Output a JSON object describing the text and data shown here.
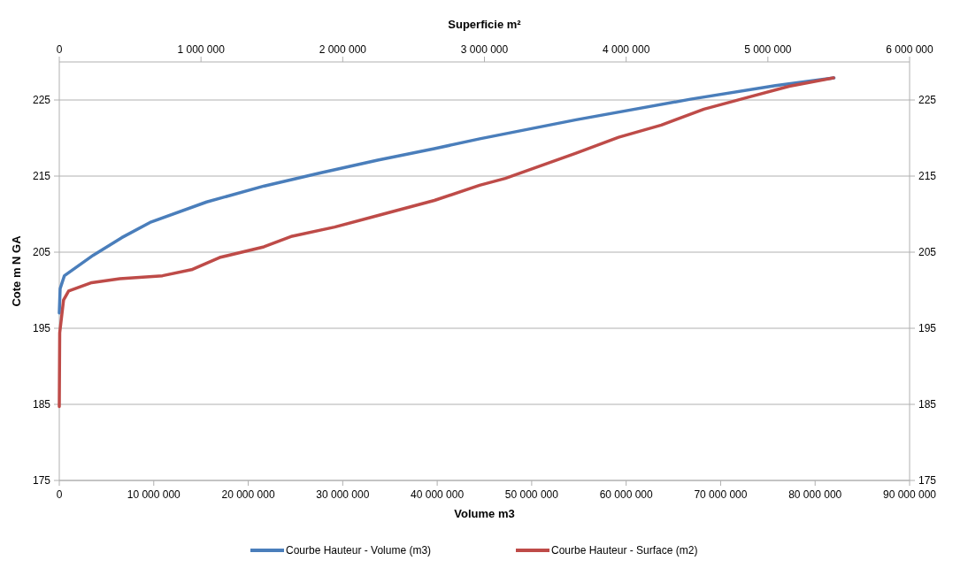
{
  "chart_data": {
    "type": "line",
    "xlabel": "Volume m3",
    "x2label": "Superficie m²",
    "ylabel": "Cote m N GA",
    "xlim": [
      0,
      90000000
    ],
    "xticks": [
      0,
      {
        "value": 10000000,
        "label": "10 000 000"
      },
      {
        "value": 20000000,
        "label": "20 000 000"
      },
      {
        "value": 30000000,
        "label": "30 000 000"
      },
      {
        "value": 40000000,
        "label": "40 000 000"
      },
      {
        "value": 50000000,
        "label": "50 000 000"
      },
      {
        "value": 60000000,
        "label": "60 000 000"
      },
      {
        "value": 70000000,
        "label": "70 000 000"
      },
      {
        "value": 80000000,
        "label": "80 000 000"
      },
      {
        "value": 90000000,
        "label": "90 000 000"
      }
    ],
    "x2lim": [
      0,
      6000000
    ],
    "x2ticks": [
      0,
      {
        "value": 1000000,
        "label": "1 000 000"
      },
      {
        "value": 2000000,
        "label": "2 000 000"
      },
      {
        "value": 3000000,
        "label": "3 000 000"
      },
      {
        "value": 4000000,
        "label": "4 000 000"
      },
      {
        "value": 5000000,
        "label": "5 000 000"
      },
      {
        "value": 6000000,
        "label": "6 000 000"
      }
    ],
    "ylim": [
      175,
      230
    ],
    "yticks": [
      175,
      185,
      195,
      205,
      215,
      225
    ],
    "y2lim": [
      175,
      230
    ],
    "y2ticks": [
      175,
      185,
      195,
      205,
      215,
      225
    ],
    "grid": "y",
    "legend": "bottom",
    "line_style": "solid",
    "series": [
      {
        "name": "Courbe Hauteur - Volume (m3)",
        "color": "#4a7ebb",
        "x": [
          0,
          90000,
          540000,
          3600000,
          6600000,
          9600000,
          15600000,
          21700000,
          27600000,
          33700000,
          39700000,
          44500000,
          54700000,
          66800000,
          75800000,
          82000000
        ],
        "values": [
          197,
          200.2,
          201.9,
          204.6,
          206.9,
          208.9,
          211.6,
          213.7,
          215.4,
          217.1,
          218.6,
          219.9,
          222.4,
          225.1,
          226.9,
          227.9
        ]
      },
      {
        "name": "Courbe Hauteur - Surface (m2)",
        "color": "#be4b48",
        "axis": "x2",
        "x": [
          0,
          3000,
          30000,
          66000,
          229000,
          427000,
          728000,
          933000,
          1131000,
          1444000,
          1643000,
          1943000,
          2244000,
          2647000,
          2966000,
          3147000,
          3646000,
          3947000,
          4248000,
          4549000,
          4850000,
          5150000,
          5463000
        ],
        "values": [
          184.7,
          194.4,
          198.7,
          199.9,
          201,
          201.5,
          201.9,
          202.7,
          204.3,
          205.7,
          207.1,
          208.3,
          209.8,
          211.8,
          213.8,
          214.7,
          218,
          220.1,
          221.7,
          223.8,
          225.3,
          226.8,
          227.9
        ]
      }
    ]
  }
}
